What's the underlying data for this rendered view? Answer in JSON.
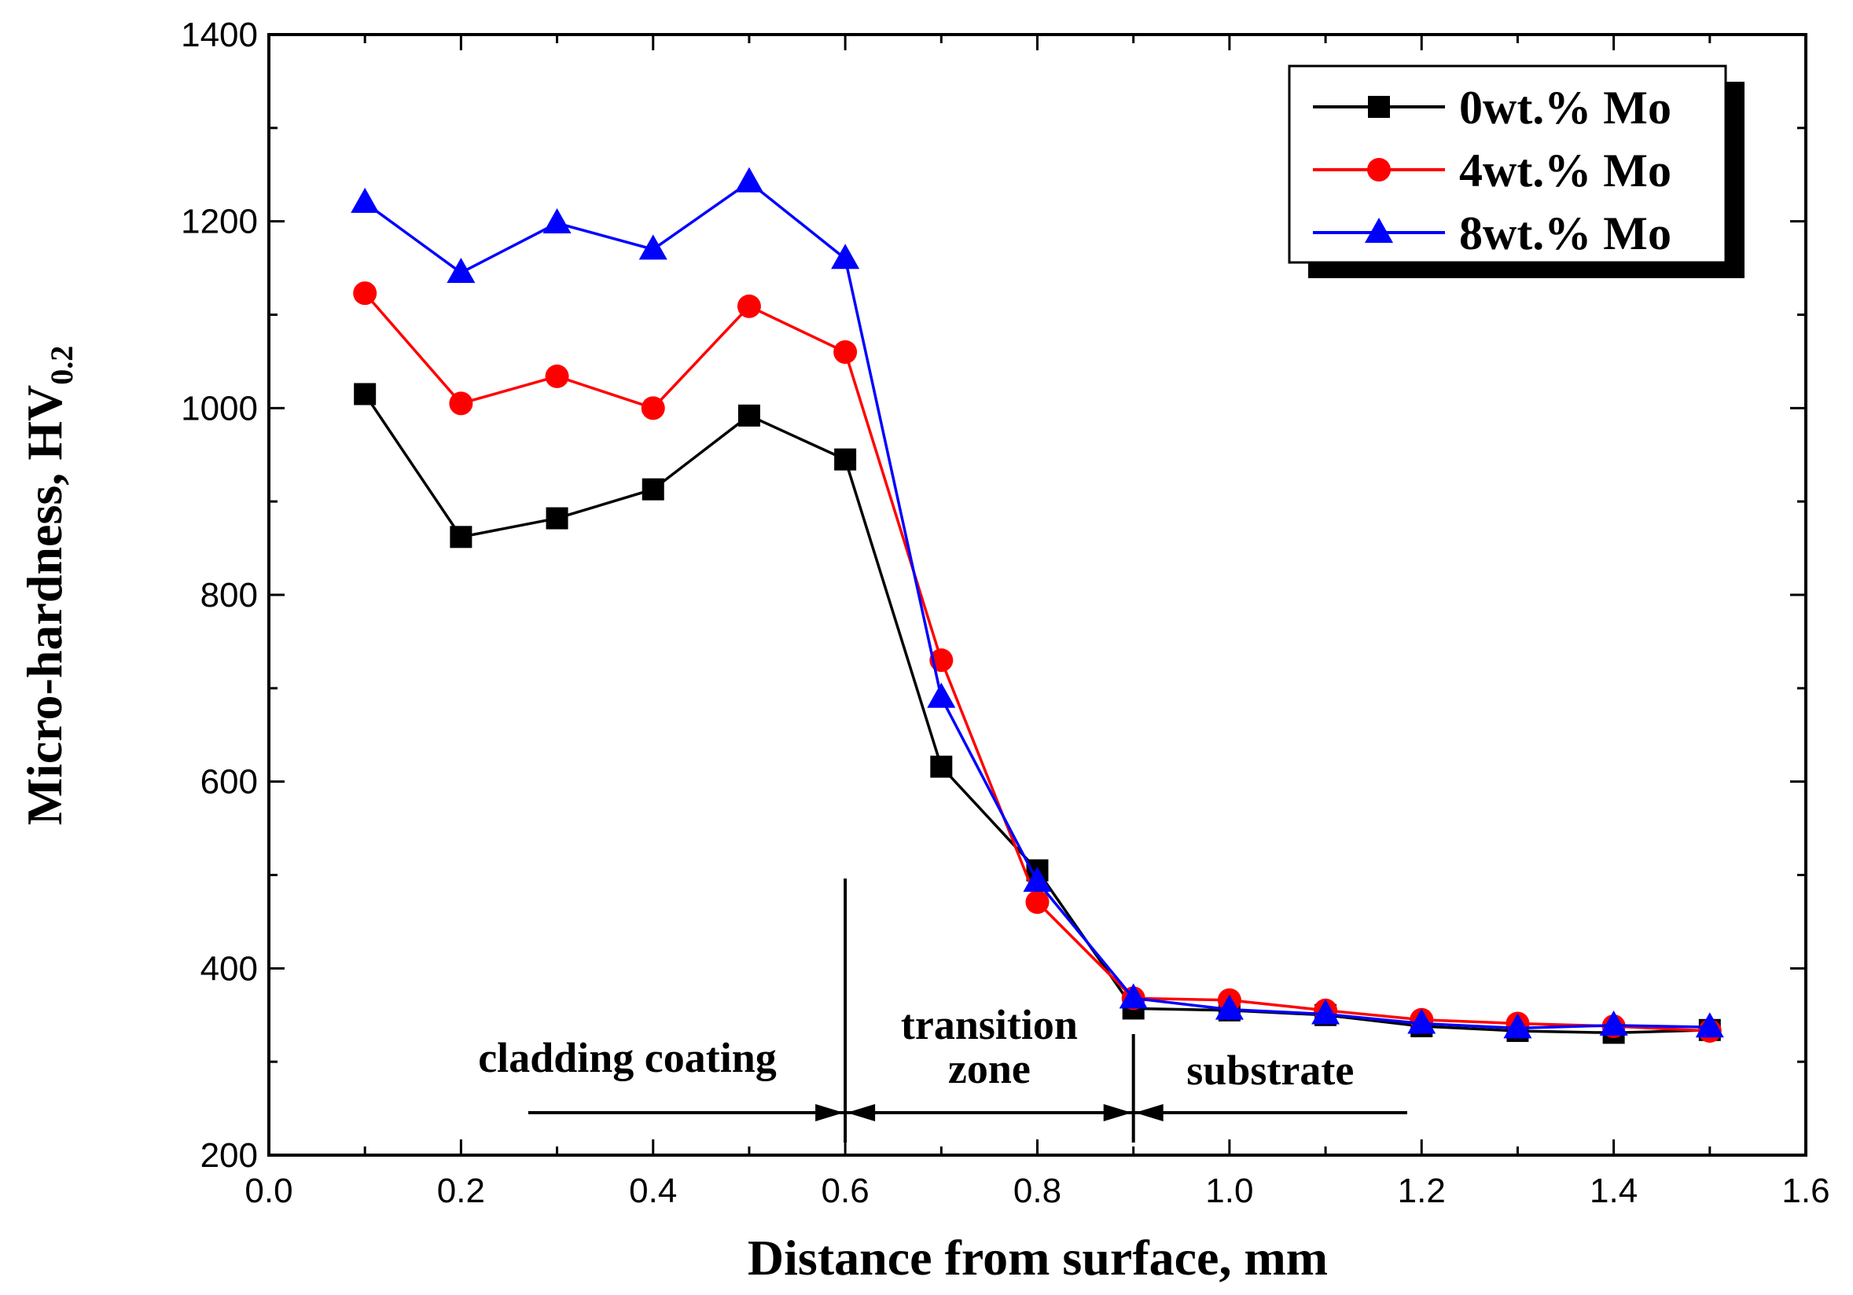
{
  "chart_data": {
    "type": "line",
    "title": "",
    "xlabel": "Distance from surface, mm",
    "ylabel_main": "Micro-hardness, HV",
    "ylabel_sub": "0.2",
    "xlim": [
      0.0,
      1.6
    ],
    "ylim": [
      200,
      1400
    ],
    "x_ticks": [
      0.0,
      0.2,
      0.4,
      0.6,
      0.8,
      1.0,
      1.2,
      1.4,
      1.6
    ],
    "x_tick_labels": [
      "0.0",
      "0.2",
      "0.4",
      "0.6",
      "0.8",
      "1.0",
      "1.2",
      "1.4",
      "1.6"
    ],
    "y_ticks": [
      200,
      400,
      600,
      800,
      1000,
      1200,
      1400
    ],
    "y_tick_labels": [
      "200",
      "400",
      "600",
      "800",
      "1000",
      "1200",
      "1400"
    ],
    "grid": false,
    "legend_position": "top-right",
    "x": [
      0.1,
      0.2,
      0.3,
      0.4,
      0.5,
      0.6,
      0.7,
      0.8,
      0.9,
      1.0,
      1.1,
      1.2,
      1.3,
      1.4,
      1.5
    ],
    "series": [
      {
        "name": "0wt.% Mo",
        "color": "#000000",
        "marker": "square",
        "values": [
          1015,
          862,
          882,
          913,
          992,
          945,
          616,
          505,
          357,
          355,
          350,
          338,
          333,
          331,
          334
        ]
      },
      {
        "name": "4wt.% Mo",
        "color": "#ff0000",
        "marker": "circle",
        "values": [
          1123,
          1005,
          1034,
          1000,
          1109,
          1060,
          730,
          471,
          368,
          366,
          355,
          345,
          341,
          338,
          333
        ]
      },
      {
        "name": "8wt.% Mo",
        "color": "#0000ff",
        "marker": "triangle",
        "values": [
          1220,
          1145,
          1198,
          1170,
          1242,
          1160,
          690,
          493,
          368,
          356,
          351,
          341,
          336,
          339,
          337
        ]
      }
    ],
    "annotations": {
      "boundaries_x": [
        0.6,
        0.9
      ],
      "zones": [
        {
          "label_lines": [
            "cladding coating"
          ],
          "from": 0.27,
          "to": 0.6
        },
        {
          "label_lines": [
            "transition",
            "zone"
          ],
          "from": 0.6,
          "to": 0.9
        },
        {
          "label_lines": [
            "substrate"
          ],
          "from": 0.9,
          "to": 1.185
        }
      ]
    }
  }
}
